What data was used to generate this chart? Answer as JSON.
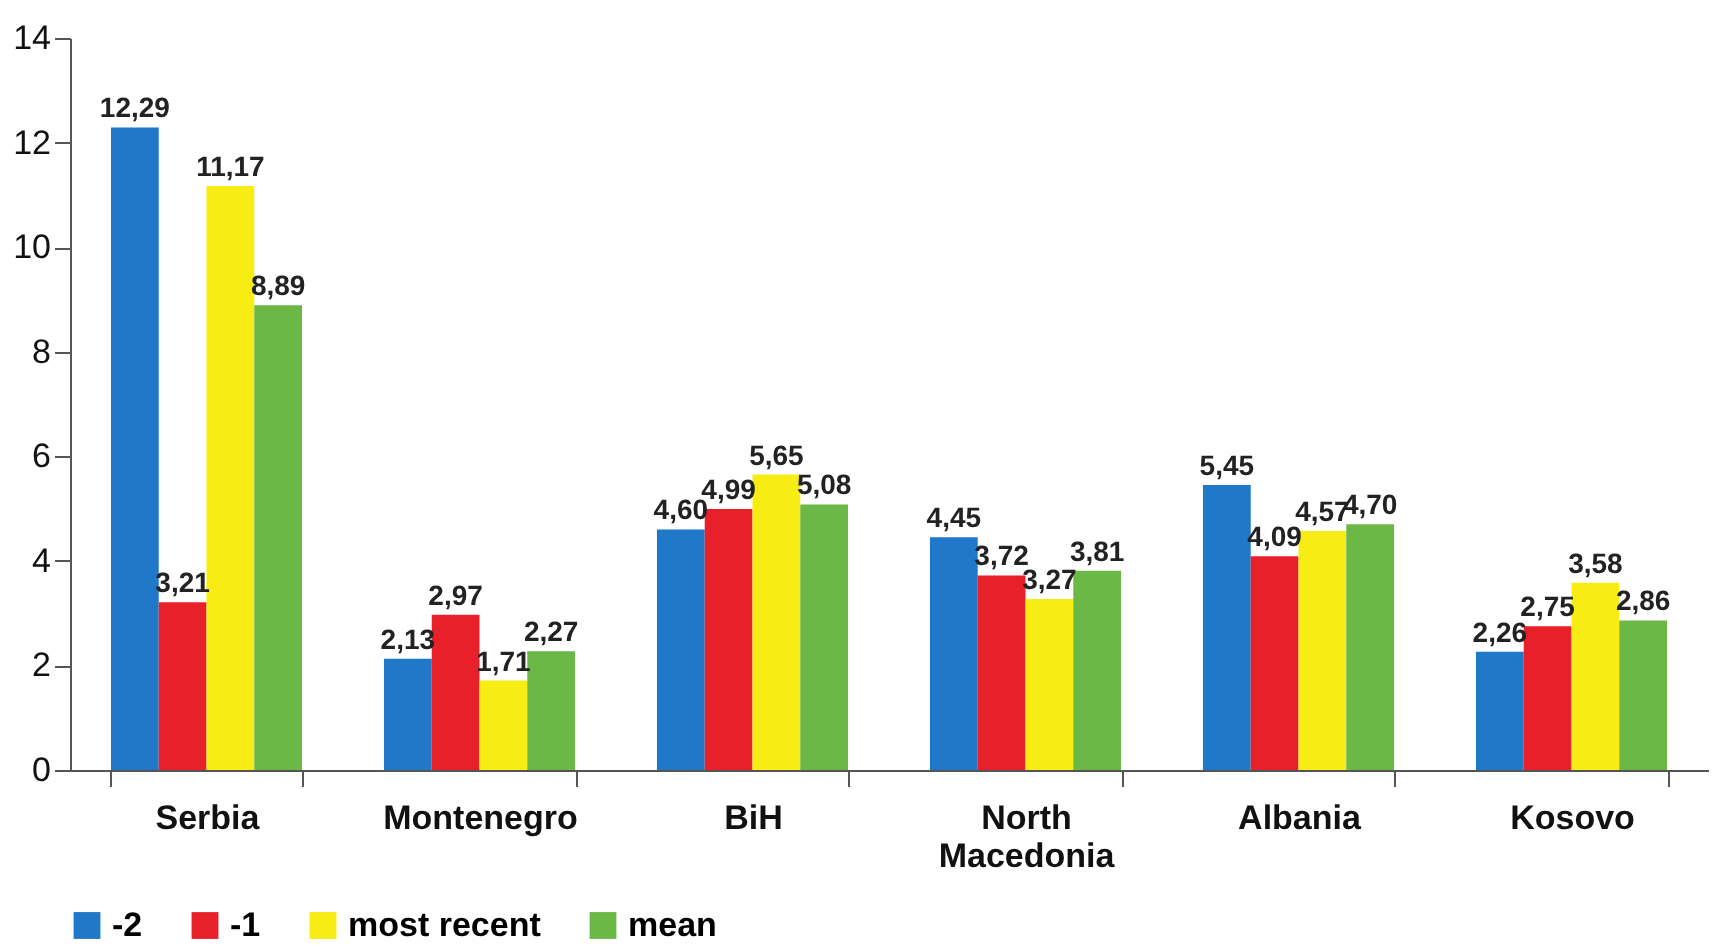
{
  "chart_data": {
    "type": "bar",
    "categories": [
      "Serbia",
      "Montenegro",
      "BiH",
      "North Macedonia",
      "Albania",
      "Kosovo"
    ],
    "series": [
      {
        "name": "-2",
        "color": "#1f78c8",
        "values": [
          12.29,
          2.13,
          4.6,
          4.45,
          5.45,
          2.26
        ],
        "value_labels": [
          "12,29",
          "2,13",
          "4,60",
          "4,45",
          "5,45",
          "2,26"
        ]
      },
      {
        "name": "-1",
        "color": "#e8202a",
        "values": [
          3.21,
          2.97,
          4.99,
          3.72,
          4.09,
          2.75
        ],
        "value_labels": [
          "3,21",
          "2,97",
          "4,99",
          "3,72",
          "4,09",
          "2,75"
        ]
      },
      {
        "name": "most recent",
        "color": "#f7ec13",
        "values": [
          11.17,
          1.71,
          5.65,
          3.27,
          4.57,
          3.58
        ],
        "value_labels": [
          "11,17",
          "1,71",
          "5,65",
          "3,27",
          "4,57",
          "3,58"
        ]
      },
      {
        "name": "mean",
        "color": "#6cb846",
        "values": [
          8.89,
          2.27,
          5.08,
          3.81,
          4.7,
          2.86
        ],
        "value_labels": [
          "8,89",
          "2,27",
          "5,08",
          "3,81",
          "4,70",
          "2,86"
        ]
      }
    ],
    "ylim": [
      0,
      14
    ],
    "yticks": [
      0,
      2,
      4,
      6,
      8,
      10,
      12,
      14
    ],
    "grid": false,
    "legend": "bottom"
  }
}
